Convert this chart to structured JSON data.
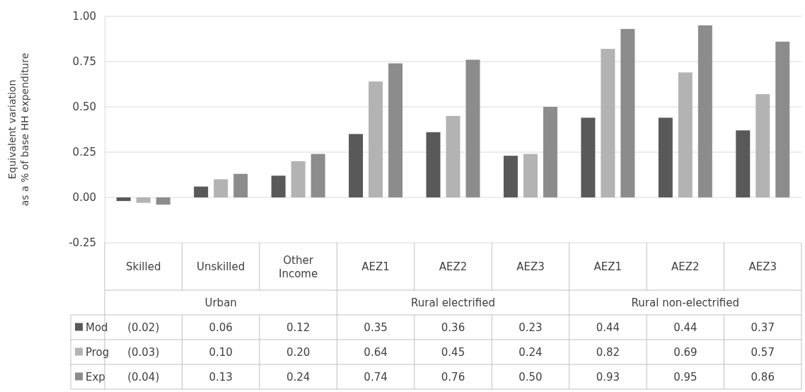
{
  "chart_data": {
    "type": "bar",
    "ylabel": "Equivalent variation\nas a % of base HH expenditure",
    "categories": [
      "Skilled",
      "Unskilled",
      "Other Income",
      "AEZ1",
      "AEZ2",
      "AEZ3",
      "AEZ1",
      "AEZ2",
      "AEZ3"
    ],
    "annotations": [
      "Urban",
      "Rural electrified",
      "Rural non-electrified"
    ],
    "series": [
      {
        "name": "Mod",
        "color": "#595959",
        "values": [
          -0.02,
          0.06,
          0.12,
          0.35,
          0.36,
          0.23,
          0.44,
          0.44,
          0.37
        ],
        "value_labels": [
          "(0.02)",
          "0.06",
          "0.12",
          "0.35",
          "0.36",
          "0.23",
          "0.44",
          "0.44",
          "0.37"
        ]
      },
      {
        "name": "Prog",
        "color": "#b3b3b3",
        "values": [
          -0.03,
          0.1,
          0.2,
          0.64,
          0.45,
          0.24,
          0.82,
          0.69,
          0.57
        ],
        "value_labels": [
          "(0.03)",
          "0.10",
          "0.20",
          "0.64",
          "0.45",
          "0.24",
          "0.82",
          "0.69",
          "0.57"
        ]
      },
      {
        "name": "Exp",
        "color": "#8c8c8c",
        "values": [
          -0.04,
          0.13,
          0.24,
          0.74,
          0.76,
          0.5,
          0.93,
          0.95,
          0.86
        ],
        "value_labels": [
          "(0.04)",
          "0.13",
          "0.24",
          "0.74",
          "0.76",
          "0.50",
          "0.93",
          "0.95",
          "0.86"
        ]
      }
    ],
    "ylim": [
      -0.25,
      1.0
    ],
    "yticks": [
      {
        "value": -0.25,
        "label": "-0.25"
      },
      {
        "value": 0,
        "label": "0.00"
      },
      {
        "value": 0.25,
        "label": "0.25"
      },
      {
        "value": 0.5,
        "label": "0.50"
      },
      {
        "value": 0.75,
        "label": "0.75"
      },
      {
        "value": 1,
        "label": "1.00"
      }
    ],
    "grid": true,
    "legend": "bottom left"
  }
}
